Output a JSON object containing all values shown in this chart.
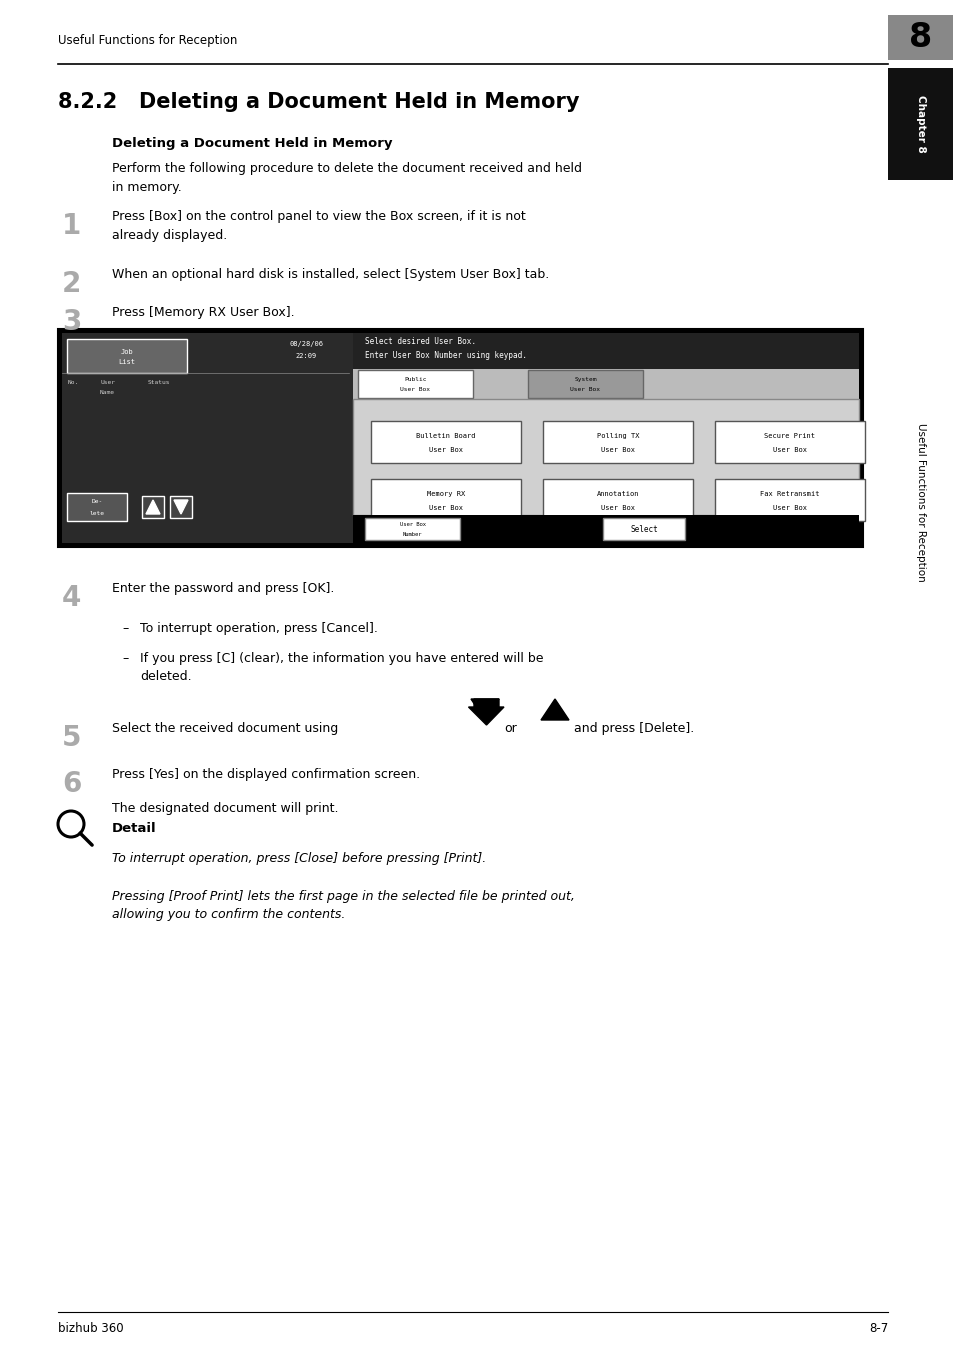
{
  "bg_color": "#ffffff",
  "page_width": 9.54,
  "page_height": 13.52,
  "header_text": "Useful Functions for Reception",
  "chapter_number": "8",
  "section_number": "8.2.2",
  "section_title": "Deleting a Document Held in Memory",
  "subsection_title": "Deleting a Document Held in Memory",
  "intro_text": "Perform the following procedure to delete the document received and held\nin memory.",
  "steps": [
    {
      "num": "1",
      "text": "Press [Box] on the control panel to view the Box screen, if it is not\nalready displayed."
    },
    {
      "num": "2",
      "text": "When an optional hard disk is installed, select [System User Box] tab."
    },
    {
      "num": "3",
      "text": "Press [Memory RX User Box]."
    },
    {
      "num": "4",
      "text": "Enter the password and press [OK]."
    },
    {
      "num": "5",
      "text": "Select the received document using"
    },
    {
      "num": "6",
      "text": "Press [Yes] on the displayed confirmation screen."
    }
  ],
  "step4_bullets": [
    "To interrupt operation, press [Cancel].",
    "If you press [C] (clear), the information you have entered will be\ndeleted."
  ],
  "step6_follow": "The designated document will print.",
  "detail_label": "Detail",
  "detail_italic1": "To interrupt operation, press [Close] before pressing [Print].",
  "detail_italic2": "Pressing [Proof Print] lets the first page in the selected file be printed out,\nallowing you to confirm the contents.",
  "footer_left": "bizhub 360",
  "footer_right": "8-7",
  "sidebar_text": "Useful Functions for Reception",
  "sidebar_chapter": "Chapter 8"
}
